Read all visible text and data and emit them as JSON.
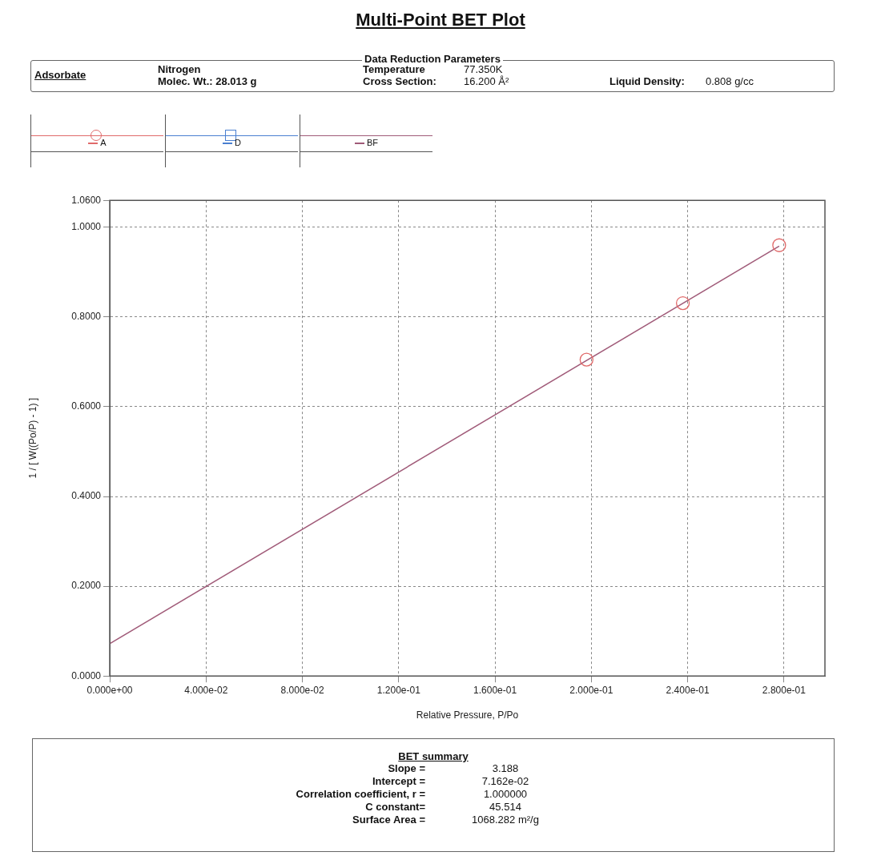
{
  "chart_data": {
    "type": "scatter",
    "title": "Multi-Point BET Plot",
    "xlabel": "Relative Pressure, P/Po",
    "ylabel": "1 / [ W((Po/P) - 1) ]",
    "xlim": [
      0,
      0.297
    ],
    "ylim": [
      0,
      1.06
    ],
    "xticks": [
      {
        "value": 0,
        "label": "0.000e+00"
      },
      {
        "value": 0.04,
        "label": "4.000e-02"
      },
      {
        "value": 0.08,
        "label": "8.000e-02"
      },
      {
        "value": 0.12,
        "label": "1.200e-01"
      },
      {
        "value": 0.16,
        "label": "1.600e-01"
      },
      {
        "value": 0.2,
        "label": "2.000e-01"
      },
      {
        "value": 0.24,
        "label": "2.400e-01"
      },
      {
        "value": 0.28,
        "label": "2.800e-01"
      }
    ],
    "yticks": [
      {
        "value": 0,
        "label": "0.0000"
      },
      {
        "value": 0.2,
        "label": "0.2000"
      },
      {
        "value": 0.4,
        "label": "0.4000"
      },
      {
        "value": 0.6,
        "label": "0.6000"
      },
      {
        "value": 0.8,
        "label": "0.8000"
      },
      {
        "value": 1,
        "label": "1.0000"
      },
      {
        "value": 1.06,
        "label": "1.0600"
      }
    ],
    "grid": true,
    "legend": "top left",
    "series": [
      {
        "name": "A",
        "marker": "circle",
        "color": "#e06a6a",
        "x": [
          0.198,
          0.238,
          0.278
        ],
        "values": [
          0.705,
          0.831,
          0.96
        ]
      },
      {
        "name": "D",
        "type": "scatter",
        "marker": "square",
        "color": "#4a7fd0"
      },
      {
        "name": "BF",
        "type": "line",
        "marker": "none",
        "color": "#a05a78",
        "x": [
          0,
          0.278
        ],
        "values": [
          0.072,
          0.958
        ]
      }
    ],
    "annotations": [
      "Data Reduction Parameters",
      "Adsorbate",
      "Nitrogen",
      "Molec. Wt.: 28.013 g",
      "Temperature",
      "77.350K",
      "Cross Section:",
      "16.200 Å²",
      "Liquid Density:",
      "0.808 g/cc",
      "BET summary",
      "Slope =",
      "3.188",
      "Intercept =",
      "7.162e-02",
      "Correlation coefficient, r =",
      "1.000000",
      "C constant=",
      "45.514",
      "Surface Area =",
      "1068.282 m²/g"
    ]
  }
}
